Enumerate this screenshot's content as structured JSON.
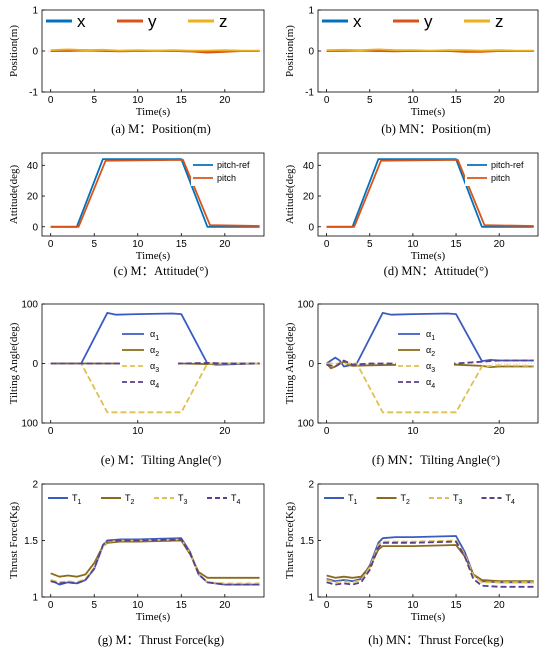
{
  "figure": {
    "colors": {
      "x": "#0072BD",
      "y": "#D95319",
      "z": "#EDB120",
      "pitch_ref": "#0072BD",
      "pitch": "#D95319",
      "a1": "#3B5BC4",
      "a2": "#8B6A1C",
      "a3": "#E0C050",
      "a4": "#5A3F8F",
      "T1": "#3B5BC4",
      "T2": "#8B6A1C",
      "T3": "#E0C050",
      "T4": "#5A3F8F",
      "axis": "#000000",
      "grid": "#e0e0e0"
    }
  },
  "chart_data": [
    {
      "id": "a",
      "type": "line",
      "caption": "(a) M：Position(m)",
      "xlabel": "Time(s)",
      "ylabel": "Position(m)",
      "xlim": [
        -1,
        24.5
      ],
      "ylim": [
        -1,
        1
      ],
      "xticks": [
        0,
        5,
        10,
        15,
        20
      ],
      "yticks": [
        -1,
        0,
        1
      ],
      "legend": {
        "placement": "top-left",
        "style": "big",
        "orientation": "horizontal"
      },
      "series": [
        {
          "name": "x",
          "color_key": "x",
          "x": [
            0,
            2,
            4,
            6,
            8,
            10,
            12,
            14,
            16,
            18,
            20,
            22,
            24
          ],
          "y": [
            0,
            0.01,
            0.02,
            0.01,
            0,
            0,
            0.01,
            0,
            -0.01,
            -0.02,
            0,
            0,
            0
          ]
        },
        {
          "name": "y",
          "color_key": "y",
          "x": [
            0,
            2,
            4,
            6,
            8,
            10,
            12,
            14,
            16,
            18,
            20,
            22,
            24
          ],
          "y": [
            0,
            0,
            0.01,
            0,
            -0.01,
            0,
            0,
            0,
            -0.01,
            -0.04,
            -0.02,
            0,
            0
          ]
        },
        {
          "name": "z",
          "color_key": "z",
          "x": [
            0,
            2,
            4,
            6,
            8,
            10,
            12,
            14,
            16,
            18,
            20,
            22,
            24
          ],
          "y": [
            0.02,
            0.04,
            0.02,
            0.03,
            0.01,
            0.02,
            0.01,
            0.02,
            0.01,
            0.01,
            0.02,
            0.01,
            0.01
          ]
        }
      ]
    },
    {
      "id": "b",
      "type": "line",
      "caption": "(b) MN：Position(m)",
      "xlabel": "Time(s)",
      "ylabel": "Position(m)",
      "xlim": [
        -1,
        24.5
      ],
      "ylim": [
        -1,
        1
      ],
      "xticks": [
        0,
        5,
        10,
        15,
        20
      ],
      "yticks": [
        -1,
        0,
        1
      ],
      "legend": {
        "placement": "top-left",
        "style": "big",
        "orientation": "horizontal"
      },
      "series": [
        {
          "name": "x",
          "color_key": "x",
          "x": [
            0,
            2,
            4,
            6,
            8,
            10,
            12,
            14,
            16,
            18,
            20,
            22,
            24
          ],
          "y": [
            0,
            0.01,
            0.01,
            0,
            0.01,
            0,
            0,
            0,
            -0.01,
            -0.01,
            0,
            0,
            0
          ]
        },
        {
          "name": "y",
          "color_key": "y",
          "x": [
            0,
            2,
            4,
            6,
            8,
            10,
            12,
            14,
            16,
            18,
            20,
            22,
            24
          ],
          "y": [
            0,
            0,
            0.01,
            0,
            -0.01,
            0,
            0,
            0,
            -0.02,
            -0.02,
            0,
            0,
            0
          ]
        },
        {
          "name": "z",
          "color_key": "z",
          "x": [
            0,
            2,
            4,
            6,
            8,
            10,
            12,
            14,
            16,
            18,
            20,
            22,
            24
          ],
          "y": [
            0.02,
            0.03,
            0.02,
            0.04,
            0.02,
            0.02,
            0.01,
            0.02,
            0.02,
            0.01,
            0.02,
            0.01,
            0.01
          ]
        }
      ]
    },
    {
      "id": "c",
      "type": "line",
      "caption": "(c) M：Attitude(°)",
      "xlabel": "Time(s)",
      "ylabel": "Attitude(deg)",
      "xlim": [
        -1,
        24.5
      ],
      "ylim": [
        -6,
        48
      ],
      "xticks": [
        0,
        5,
        10,
        15,
        20
      ],
      "yticks": [
        0,
        20,
        40
      ],
      "legend": {
        "placement": "top-right",
        "style": "small",
        "orientation": "vertical"
      },
      "series": [
        {
          "name": "pitch-ref",
          "color_key": "pitch_ref",
          "x": [
            0,
            3,
            6,
            15,
            18,
            24
          ],
          "y": [
            0,
            0,
            44,
            44,
            0,
            0
          ]
        },
        {
          "name": "pitch",
          "color_key": "pitch",
          "x": [
            0,
            3.2,
            6.3,
            15.2,
            18.3,
            24
          ],
          "y": [
            0,
            0,
            43,
            43.5,
            1,
            0.5
          ]
        }
      ]
    },
    {
      "id": "d",
      "type": "line",
      "caption": "(d) MN：Attitude(°)",
      "xlabel": "Time(s)",
      "ylabel": "Attitude(deg)",
      "xlim": [
        -1,
        24.5
      ],
      "ylim": [
        -6,
        48
      ],
      "xticks": [
        0,
        5,
        10,
        15,
        20
      ],
      "yticks": [
        0,
        20,
        40
      ],
      "legend": {
        "placement": "top-right",
        "style": "small",
        "orientation": "vertical"
      },
      "series": [
        {
          "name": "pitch-ref",
          "color_key": "pitch_ref",
          "x": [
            0,
            3,
            6,
            15,
            18,
            24
          ],
          "y": [
            0,
            0,
            44,
            44,
            0,
            0
          ]
        },
        {
          "name": "pitch",
          "color_key": "pitch",
          "x": [
            0,
            3.2,
            6.3,
            15.2,
            18.3,
            24
          ],
          "y": [
            0,
            0,
            43,
            43.5,
            1,
            0.5
          ]
        }
      ]
    },
    {
      "id": "e",
      "type": "line",
      "caption": "(e) M：Tilting Angle(°)",
      "xlabel": "",
      "ylabel": "Tilting Angle(deg)",
      "xlim": [
        -1,
        24.5
      ],
      "ylim": [
        -100,
        100
      ],
      "yaxis_reversed": true,
      "xticks": [
        0,
        10,
        20
      ],
      "yticks": [
        100,
        0,
        -100
      ],
      "ytick_labels": [
        "100",
        "0",
        "100"
      ],
      "legend": {
        "placement": "center",
        "style": "small",
        "orientation": "vertical"
      },
      "series": [
        {
          "name": "α1",
          "color_key": "a1",
          "dash": "solid",
          "x": [
            0,
            3.5,
            6.5,
            7.5,
            10,
            14,
            15,
            18,
            19,
            24
          ],
          "y": [
            0,
            0,
            -85,
            -82,
            -83,
            -84,
            -83,
            0,
            2,
            0
          ]
        },
        {
          "name": "α2",
          "color_key": "a2",
          "dash": "solid",
          "x": [
            0,
            5,
            10,
            15,
            18,
            20,
            24
          ],
          "y": [
            0,
            0,
            0,
            0,
            1,
            0,
            0
          ]
        },
        {
          "name": "α3",
          "color_key": "a3",
          "dash": "dash",
          "x": [
            0,
            3.5,
            6.5,
            15,
            18,
            24
          ],
          "y": [
            0,
            0,
            82,
            82,
            0,
            0
          ]
        },
        {
          "name": "α4",
          "color_key": "a4",
          "dash": "dash",
          "x": [
            0,
            5,
            10,
            15,
            18,
            20,
            24
          ],
          "y": [
            0,
            0,
            0,
            0,
            -1,
            0,
            0
          ]
        }
      ]
    },
    {
      "id": "f",
      "type": "line",
      "caption": "(f) MN：Tilting Angle(°)",
      "xlabel": "",
      "ylabel": "Tilting Angle(deg)",
      "xlim": [
        -1,
        24.5
      ],
      "ylim": [
        -100,
        100
      ],
      "yaxis_reversed": true,
      "xticks": [
        0,
        10,
        20
      ],
      "yticks": [
        100,
        0,
        -100
      ],
      "ytick_labels": [
        "100",
        "0",
        "100"
      ],
      "legend": {
        "placement": "center",
        "style": "small",
        "orientation": "vertical"
      },
      "series": [
        {
          "name": "α1",
          "color_key": "a1",
          "dash": "solid",
          "x": [
            0,
            0.5,
            1,
            1.5,
            2,
            3,
            3.5,
            6.5,
            7.5,
            10,
            14,
            15,
            18,
            19,
            20,
            24
          ],
          "y": [
            0,
            -5,
            -10,
            -5,
            5,
            2,
            0,
            -85,
            -82,
            -83,
            -84,
            -83,
            -4,
            -6,
            -5,
            -5
          ]
        },
        {
          "name": "α2",
          "color_key": "a2",
          "dash": "solid",
          "x": [
            0,
            0.5,
            1,
            2,
            2.5,
            3,
            5,
            10,
            15,
            18,
            19,
            20,
            24
          ],
          "y": [
            0,
            8,
            5,
            -3,
            2,
            4,
            3,
            2,
            2,
            4,
            6,
            5,
            5
          ]
        },
        {
          "name": "α3",
          "color_key": "a3",
          "dash": "dash",
          "x": [
            0,
            3.5,
            6.5,
            15,
            18,
            20,
            24
          ],
          "y": [
            0,
            0,
            82,
            82,
            5,
            3,
            4
          ]
        },
        {
          "name": "α4",
          "color_key": "a4",
          "dash": "dash",
          "x": [
            0,
            1,
            2,
            3,
            5,
            10,
            15,
            18,
            20,
            24
          ],
          "y": [
            2,
            5,
            -5,
            2,
            0,
            0,
            0,
            -3,
            -5,
            -5
          ]
        }
      ]
    },
    {
      "id": "g",
      "type": "line",
      "caption": "(g) M：Thrust Force(kg)",
      "xlabel": "Time(s)",
      "ylabel": "Thrust Force(Kg)",
      "xlim": [
        -1,
        24.5
      ],
      "ylim": [
        1,
        2
      ],
      "xticks": [
        0,
        5,
        10,
        15,
        20
      ],
      "yticks": [
        1,
        1.5,
        2
      ],
      "ytick_labels": [
        "1",
        "1.5",
        "2"
      ],
      "legend": {
        "placement": "top",
        "style": "small",
        "orientation": "horizontal"
      },
      "series": [
        {
          "name": "T1",
          "color_key": "T1",
          "dash": "solid",
          "x": [
            0,
            1,
            2,
            3,
            4,
            5,
            6,
            6.5,
            8,
            10,
            15,
            16,
            17,
            18,
            20,
            24
          ],
          "y": [
            1.15,
            1.11,
            1.13,
            1.12,
            1.15,
            1.25,
            1.45,
            1.5,
            1.51,
            1.51,
            1.52,
            1.4,
            1.2,
            1.13,
            1.11,
            1.11
          ]
        },
        {
          "name": "T2",
          "color_key": "T2",
          "dash": "solid",
          "x": [
            0,
            1,
            2,
            3,
            4,
            5,
            6,
            6.5,
            8,
            10,
            15,
            16,
            17,
            18,
            20,
            24
          ],
          "y": [
            1.21,
            1.18,
            1.19,
            1.18,
            1.2,
            1.3,
            1.45,
            1.48,
            1.49,
            1.49,
            1.5,
            1.38,
            1.22,
            1.17,
            1.17,
            1.17
          ]
        },
        {
          "name": "T3",
          "color_key": "T3",
          "dash": "dash",
          "x": [
            0,
            1,
            2,
            3,
            4,
            5,
            6,
            6.5,
            8,
            10,
            15,
            16,
            17,
            18,
            20,
            24
          ],
          "y": [
            1.15,
            1.13,
            1.14,
            1.13,
            1.16,
            1.26,
            1.45,
            1.49,
            1.5,
            1.5,
            1.51,
            1.39,
            1.2,
            1.13,
            1.12,
            1.12
          ]
        },
        {
          "name": "T4",
          "color_key": "T4",
          "dash": "dash",
          "x": [
            0,
            1,
            2,
            3,
            4,
            5,
            6,
            6.5,
            8,
            10,
            15,
            16,
            17,
            18,
            20,
            24
          ],
          "y": [
            1.14,
            1.12,
            1.13,
            1.12,
            1.15,
            1.25,
            1.46,
            1.5,
            1.5,
            1.5,
            1.51,
            1.39,
            1.2,
            1.13,
            1.11,
            1.11
          ]
        }
      ]
    },
    {
      "id": "h",
      "type": "line",
      "caption": "(h) MN：Thrust Force(kg)",
      "xlabel": "Time(s)",
      "ylabel": "Thrust Force(Kg)",
      "xlim": [
        -1,
        24.5
      ],
      "ylim": [
        1,
        2
      ],
      "xticks": [
        0,
        5,
        10,
        15,
        20
      ],
      "yticks": [
        1,
        1.5,
        2
      ],
      "ytick_labels": [
        "1",
        "1.5",
        "2"
      ],
      "legend": {
        "placement": "top",
        "style": "small",
        "orientation": "horizontal"
      },
      "series": [
        {
          "name": "T1",
          "color_key": "T1",
          "dash": "solid",
          "x": [
            0,
            1,
            2,
            3,
            4,
            5,
            6,
            6.5,
            8,
            10,
            15,
            16,
            17,
            18,
            20,
            24
          ],
          "y": [
            1.16,
            1.14,
            1.15,
            1.14,
            1.16,
            1.28,
            1.48,
            1.52,
            1.53,
            1.53,
            1.54,
            1.4,
            1.2,
            1.14,
            1.13,
            1.13
          ]
        },
        {
          "name": "T2",
          "color_key": "T2",
          "dash": "solid",
          "x": [
            0,
            1,
            2,
            3,
            4,
            5,
            6,
            6.5,
            8,
            10,
            15,
            16,
            17,
            18,
            20,
            24
          ],
          "y": [
            1.19,
            1.17,
            1.18,
            1.17,
            1.18,
            1.27,
            1.42,
            1.45,
            1.45,
            1.45,
            1.46,
            1.36,
            1.2,
            1.15,
            1.14,
            1.14
          ]
        },
        {
          "name": "T3",
          "color_key": "T3",
          "dash": "dash",
          "x": [
            0,
            1,
            2,
            3,
            4,
            5,
            6,
            6.5,
            8,
            10,
            15,
            16,
            17,
            18,
            20,
            24
          ],
          "y": [
            1.15,
            1.13,
            1.14,
            1.13,
            1.15,
            1.26,
            1.46,
            1.49,
            1.49,
            1.49,
            1.5,
            1.38,
            1.19,
            1.13,
            1.13,
            1.13
          ]
        },
        {
          "name": "T4",
          "color_key": "T4",
          "dash": "dash",
          "x": [
            0,
            1,
            2,
            3,
            4,
            5,
            6,
            6.5,
            8,
            10,
            15,
            16,
            17,
            18,
            20,
            24
          ],
          "y": [
            1.13,
            1.11,
            1.12,
            1.11,
            1.13,
            1.24,
            1.44,
            1.48,
            1.48,
            1.48,
            1.49,
            1.36,
            1.16,
            1.1,
            1.09,
            1.09
          ]
        }
      ]
    }
  ]
}
